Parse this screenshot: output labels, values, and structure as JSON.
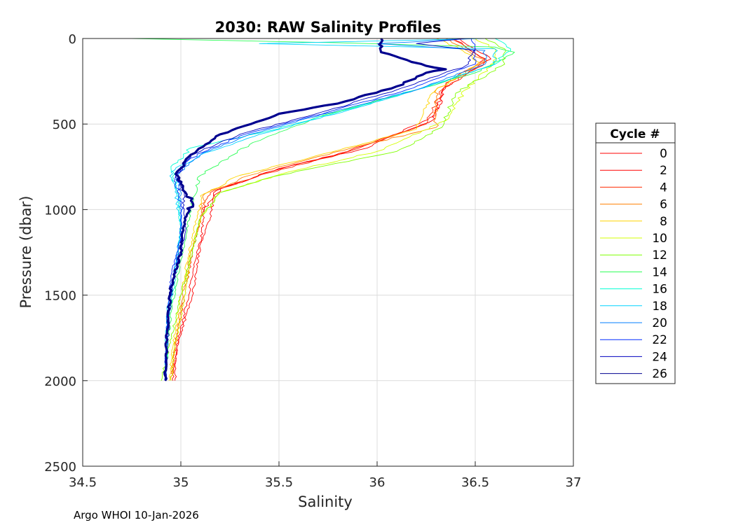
{
  "chart_data": {
    "type": "line",
    "title": "2030: RAW Salinity Profiles",
    "xlabel": "Salinity",
    "ylabel": "Pressure (dbar)",
    "xlim": [
      34.5,
      37
    ],
    "ylim": [
      0,
      2500
    ],
    "y_reversed": true,
    "xticks": [
      34.5,
      35,
      35.5,
      36,
      36.5,
      37
    ],
    "xtick_labels": [
      "34.5",
      "35",
      "35.5",
      "36",
      "36.5",
      "37"
    ],
    "yticks": [
      0,
      500,
      1000,
      1500,
      2000,
      2500
    ],
    "ytick_labels": [
      "0",
      "500",
      "1000",
      "1500",
      "2000",
      "2500"
    ],
    "grid": true,
    "legend": {
      "title": "Cycle #",
      "placement": "right-outside",
      "entries": [
        {
          "label": "0",
          "color": "#ff0000"
        },
        {
          "label": "2",
          "color": "#ff0000"
        },
        {
          "label": "4",
          "color": "#ff2a00"
        },
        {
          "label": "6",
          "color": "#ff7f00"
        },
        {
          "label": "8",
          "color": "#ffd400"
        },
        {
          "label": "10",
          "color": "#d4ff00"
        },
        {
          "label": "12",
          "color": "#7fff00"
        },
        {
          "label": "14",
          "color": "#2aff55"
        },
        {
          "label": "16",
          "color": "#00ffd4"
        },
        {
          "label": "18",
          "color": "#00d4ff"
        },
        {
          "label": "20",
          "color": "#007fff"
        },
        {
          "label": "22",
          "color": "#002aff"
        },
        {
          "label": "24",
          "color": "#0000bf"
        },
        {
          "label": "26",
          "color": "#00008f"
        }
      ]
    },
    "series": [
      {
        "name": "0",
        "color": "#ff0000",
        "points": [
          [
            36.4,
            0
          ],
          [
            36.45,
            50
          ],
          [
            36.55,
            120
          ],
          [
            36.35,
            260
          ],
          [
            36.3,
            450
          ],
          [
            35.95,
            640
          ],
          [
            35.5,
            760
          ],
          [
            35.2,
            880
          ],
          [
            35.12,
            1000
          ],
          [
            35.1,
            1200
          ],
          [
            35.06,
            1500
          ],
          [
            34.98,
            1800
          ],
          [
            34.97,
            2000
          ]
        ]
      },
      {
        "name": "2",
        "color": "#ff0000",
        "points": [
          [
            36.42,
            0
          ],
          [
            36.48,
            50
          ],
          [
            36.58,
            120
          ],
          [
            36.35,
            280
          ],
          [
            36.28,
            480
          ],
          [
            35.85,
            660
          ],
          [
            35.45,
            780
          ],
          [
            35.18,
            890
          ],
          [
            35.15,
            1050
          ],
          [
            35.08,
            1250
          ],
          [
            35.04,
            1500
          ],
          [
            34.98,
            1800
          ],
          [
            34.96,
            2000
          ]
        ]
      },
      {
        "name": "4",
        "color": "#ff2a00",
        "points": [
          [
            36.38,
            0
          ],
          [
            36.46,
            60
          ],
          [
            36.56,
            130
          ],
          [
            36.33,
            300
          ],
          [
            36.25,
            500
          ],
          [
            35.8,
            680
          ],
          [
            35.4,
            800
          ],
          [
            35.15,
            900
          ],
          [
            35.1,
            1050
          ],
          [
            35.06,
            1250
          ],
          [
            35.02,
            1500
          ],
          [
            34.97,
            1800
          ],
          [
            34.95,
            2000
          ]
        ]
      },
      {
        "name": "6",
        "color": "#ff7f00",
        "points": [
          [
            36.35,
            0
          ],
          [
            36.44,
            60
          ],
          [
            36.55,
            130
          ],
          [
            36.3,
            300
          ],
          [
            36.3,
            520
          ],
          [
            35.7,
            690
          ],
          [
            35.35,
            800
          ],
          [
            35.12,
            910
          ],
          [
            35.1,
            1060
          ],
          [
            35.05,
            1260
          ],
          [
            35.01,
            1500
          ],
          [
            34.97,
            1800
          ],
          [
            34.95,
            2000
          ]
        ]
      },
      {
        "name": "8",
        "color": "#ffd400",
        "points": [
          [
            36.3,
            0
          ],
          [
            36.42,
            60
          ],
          [
            36.52,
            140
          ],
          [
            36.28,
            320
          ],
          [
            36.2,
            530
          ],
          [
            35.65,
            700
          ],
          [
            35.3,
            800
          ],
          [
            35.1,
            920
          ],
          [
            35.08,
            1060
          ],
          [
            35.04,
            1260
          ],
          [
            35.0,
            1500
          ],
          [
            34.96,
            1800
          ],
          [
            34.94,
            2000
          ]
        ]
      },
      {
        "name": "10",
        "color": "#d4ff00",
        "points": [
          [
            36.5,
            0
          ],
          [
            36.6,
            60
          ],
          [
            36.6,
            140
          ],
          [
            36.45,
            300
          ],
          [
            36.35,
            480
          ],
          [
            36.0,
            660
          ],
          [
            35.55,
            780
          ],
          [
            35.2,
            900
          ],
          [
            35.1,
            1050
          ],
          [
            35.05,
            1250
          ],
          [
            35.02,
            1500
          ],
          [
            34.97,
            1800
          ],
          [
            34.95,
            2000
          ]
        ]
      },
      {
        "name": "12",
        "color": "#7fff00",
        "points": [
          [
            36.55,
            0
          ],
          [
            36.65,
            60
          ],
          [
            36.65,
            150
          ],
          [
            36.4,
            320
          ],
          [
            36.33,
            520
          ],
          [
            36.1,
            660
          ],
          [
            35.5,
            800
          ],
          [
            35.2,
            900
          ],
          [
            35.1,
            1050
          ],
          [
            35.06,
            1250
          ],
          [
            35.0,
            1500
          ],
          [
            34.94,
            1800
          ],
          [
            34.9,
            2000
          ]
        ]
      },
      {
        "name": "14",
        "color": "#2aff55",
        "points": [
          [
            34.75,
            0
          ],
          [
            35.8,
            25
          ],
          [
            36.6,
            50
          ],
          [
            36.7,
            80
          ],
          [
            36.5,
            200
          ],
          [
            36.2,
            300
          ],
          [
            35.7,
            460
          ],
          [
            35.35,
            620
          ],
          [
            35.1,
            800
          ],
          [
            35.05,
            1000
          ],
          [
            35.0,
            1300
          ],
          [
            34.95,
            1600
          ],
          [
            34.92,
            2000
          ]
        ]
      },
      {
        "name": "16",
        "color": "#00ffd4",
        "points": [
          [
            36.6,
            0
          ],
          [
            36.68,
            60
          ],
          [
            36.6,
            150
          ],
          [
            36.25,
            280
          ],
          [
            35.9,
            400
          ],
          [
            35.45,
            540
          ],
          [
            35.05,
            640
          ],
          [
            34.95,
            760
          ],
          [
            34.98,
            900
          ],
          [
            35.0,
            1100
          ],
          [
            34.98,
            1350
          ],
          [
            34.94,
            1600
          ],
          [
            34.92,
            2000
          ]
        ]
      },
      {
        "name": "18",
        "color": "#00d4ff",
        "points": [
          [
            36.55,
            0
          ],
          [
            35.4,
            30
          ],
          [
            36.6,
            60
          ],
          [
            36.6,
            150
          ],
          [
            36.2,
            300
          ],
          [
            35.85,
            420
          ],
          [
            35.4,
            560
          ],
          [
            35.1,
            680
          ],
          [
            34.95,
            780
          ],
          [
            34.98,
            920
          ],
          [
            35.0,
            1100
          ],
          [
            34.97,
            1350
          ],
          [
            34.93,
            1600
          ],
          [
            34.92,
            2000
          ]
        ]
      },
      {
        "name": "20",
        "color": "#007fff",
        "points": [
          [
            36.5,
            0
          ],
          [
            36.0,
            30
          ],
          [
            36.55,
            70
          ],
          [
            36.55,
            150
          ],
          [
            36.2,
            300
          ],
          [
            35.8,
            420
          ],
          [
            35.35,
            560
          ],
          [
            35.1,
            680
          ],
          [
            34.98,
            800
          ],
          [
            35.0,
            950
          ],
          [
            35.0,
            1150
          ],
          [
            34.96,
            1400
          ],
          [
            34.93,
            1650
          ],
          [
            34.92,
            2000
          ]
        ]
      },
      {
        "name": "22",
        "color": "#002aff",
        "points": [
          [
            36.48,
            0
          ],
          [
            36.5,
            60
          ],
          [
            36.5,
            150
          ],
          [
            36.15,
            300
          ],
          [
            35.75,
            430
          ],
          [
            35.3,
            570
          ],
          [
            35.05,
            700
          ],
          [
            34.97,
            820
          ],
          [
            35.0,
            980
          ],
          [
            35.0,
            1150
          ],
          [
            34.95,
            1400
          ],
          [
            34.93,
            1650
          ],
          [
            34.92,
            2000
          ]
        ]
      },
      {
        "name": "24",
        "color": "#0000bf",
        "points": [
          [
            36.45,
            0
          ],
          [
            36.2,
            30
          ],
          [
            36.5,
            70
          ],
          [
            36.45,
            160
          ],
          [
            36.1,
            300
          ],
          [
            35.75,
            420
          ],
          [
            35.3,
            560
          ],
          [
            35.05,
            680
          ],
          [
            34.98,
            800
          ],
          [
            35.02,
            950
          ],
          [
            35.02,
            1150
          ],
          [
            34.96,
            1400
          ],
          [
            34.94,
            1650
          ],
          [
            34.92,
            2000
          ]
        ]
      },
      {
        "name": "26",
        "color": "#00008f",
        "bold": true,
        "points": [
          [
            36.02,
            0
          ],
          [
            36.02,
            80
          ],
          [
            36.25,
            160
          ],
          [
            36.35,
            180
          ],
          [
            36.25,
            200
          ],
          [
            36.1,
            280
          ],
          [
            35.8,
            380
          ],
          [
            35.5,
            440
          ],
          [
            35.2,
            560
          ],
          [
            35.05,
            680
          ],
          [
            34.98,
            780
          ],
          [
            35.0,
            850
          ],
          [
            35.06,
            960
          ],
          [
            35.02,
            1050
          ],
          [
            35.0,
            1250
          ],
          [
            34.95,
            1450
          ],
          [
            34.93,
            1700
          ],
          [
            34.92,
            2000
          ]
        ]
      }
    ]
  },
  "footer": {
    "text": "Argo WHOI 10-Jan-2026"
  }
}
